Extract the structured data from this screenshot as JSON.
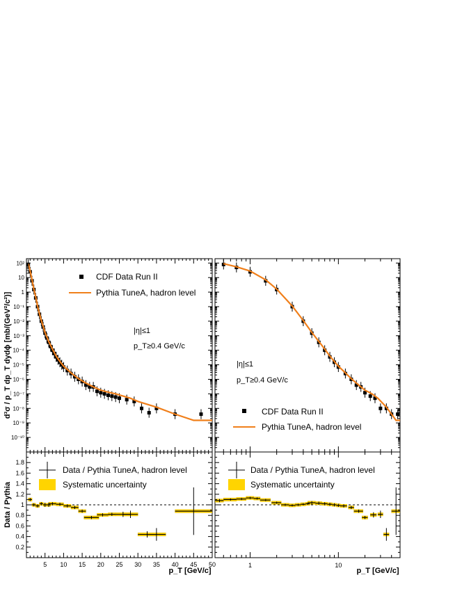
{
  "colors": {
    "data": "#000000",
    "mc": "#f07f1a",
    "band": "#ffd400",
    "band_edge": "#e6b800"
  },
  "labels": {
    "ylabel_top": "d³σ / p_T dp_T dydϕ [mb/(GeV²/c²)]",
    "ylabel_ratio": "Data / Pythia",
    "xlabel": "p_T  [GeV/c]",
    "cut_eta": "|η|≤1",
    "cut_pt": "p_T≥0.4 GeV/c",
    "legend_data": "CDF Data Run II",
    "legend_mc": "Pythia TuneA, hadron level",
    "legend_ratio": "Data / Pythia TuneA, hadron level",
    "legend_syst": "Systematic uncertainty"
  },
  "chart_data": [
    {
      "type": "scatter",
      "panel": "top-left",
      "x_scale": "linear",
      "y_scale": "log",
      "xlim": [
        0,
        50
      ],
      "ylim": [
        1e-11,
        200
      ],
      "x_ticks": [
        5,
        10,
        15,
        20,
        25,
        30,
        35,
        40,
        45,
        50
      ],
      "y_ticks": [
        "10²",
        "10",
        "1",
        "10⁻¹",
        "10⁻²",
        "10⁻³",
        "10⁻⁴",
        "10⁻⁵",
        "10⁻⁶",
        "10⁻⁷",
        "10⁻⁸",
        "10⁻⁹",
        "10⁻¹⁰"
      ],
      "legend_position": "top-left",
      "series": [
        {
          "name": "CDF Data Run II",
          "style": "markers",
          "x": [
            0.5,
            1,
            1.5,
            2,
            2.5,
            3,
            3.5,
            4,
            4.5,
            5,
            5.5,
            6,
            6.5,
            7,
            7.5,
            8,
            8.5,
            9,
            9.5,
            10,
            11,
            12,
            13,
            14,
            15,
            16,
            17,
            18,
            19,
            20,
            21,
            22,
            23,
            24,
            25,
            27,
            29,
            31,
            33,
            35,
            40,
            47
          ],
          "y": [
            80,
            25,
            6,
            1.5,
            0.4,
            0.1,
            0.03,
            0.01,
            0.004,
            0.0015,
            0.0007,
            0.00035,
            0.00018,
            0.0001,
            6e-05,
            3.5e-05,
            2.2e-05,
            1.5e-05,
            1e-05,
            7e-06,
            4e-06,
            2.5e-06,
            1.5e-06,
            1e-06,
            7e-07,
            4e-07,
            3e-07,
            3e-07,
            1.5e-07,
            1.2e-07,
            1e-07,
            8e-08,
            7e-08,
            6e-08,
            5e-08,
            4e-08,
            3e-08,
            1e-08,
            5e-09,
            1e-08,
            4e-09,
            4e-09
          ]
        },
        {
          "name": "Pythia TuneA, hadron level",
          "style": "line",
          "x": [
            0.5,
            1,
            1.5,
            2,
            2.5,
            3,
            3.5,
            4,
            4.5,
            5,
            6,
            7,
            8,
            9,
            10,
            12,
            14,
            16,
            18,
            20,
            22,
            24,
            26,
            28,
            30,
            35,
            40,
            45,
            50
          ],
          "y": [
            90,
            28,
            7,
            1.6,
            0.45,
            0.11,
            0.033,
            0.011,
            0.0045,
            0.0017,
            0.0004,
            0.00012,
            4e-05,
            1.7e-05,
            8e-06,
            2.8e-06,
            1.1e-06,
            5.5e-07,
            3e-07,
            1.8e-07,
            1.3e-07,
            1e-07,
            7e-08,
            5e-08,
            3e-08,
            1.2e-08,
            4e-09,
            1.5e-09,
            1.5e-09
          ]
        }
      ]
    },
    {
      "type": "scatter",
      "panel": "top-right",
      "x_scale": "log",
      "y_scale": "log",
      "xlim": [
        0.4,
        50
      ],
      "ylim": [
        1e-11,
        200
      ],
      "legend_position": "bottom-right",
      "series": [
        {
          "name": "CDF Data Run II",
          "style": "markers",
          "x": [
            0.5,
            0.7,
            1,
            1.5,
            2,
            3,
            4,
            5,
            6,
            7,
            8,
            9,
            10,
            12,
            14,
            16,
            18,
            20,
            23,
            26,
            30,
            35,
            40,
            47
          ],
          "y": [
            80,
            50,
            25,
            6,
            1.5,
            0.1,
            0.01,
            0.0015,
            0.00035,
            0.0001,
            3.5e-05,
            1.5e-05,
            7e-06,
            2.5e-06,
            1e-06,
            4e-07,
            3e-07,
            1.2e-07,
            7e-08,
            5e-08,
            1e-08,
            1e-08,
            4e-09,
            4e-09
          ]
        },
        {
          "name": "Pythia TuneA, hadron level",
          "style": "line",
          "x": [
            0.5,
            0.7,
            1,
            1.5,
            2,
            3,
            4,
            5,
            6,
            7,
            8,
            9,
            10,
            12,
            14,
            16,
            18,
            20,
            24,
            28,
            35,
            40,
            45,
            50
          ],
          "y": [
            90,
            55,
            28,
            7,
            1.6,
            0.11,
            0.011,
            0.0017,
            0.0004,
            0.00012,
            4e-05,
            1.7e-05,
            8e-06,
            2.8e-06,
            1.1e-06,
            5.5e-07,
            3e-07,
            1.8e-07,
            1e-07,
            5e-08,
            1.2e-08,
            4e-09,
            1.5e-09,
            1.5e-09
          ]
        }
      ]
    },
    {
      "type": "scatter",
      "panel": "bottom-left",
      "x_scale": "linear",
      "y_scale": "linear",
      "xlim": [
        0,
        50
      ],
      "ylim": [
        0,
        2.0
      ],
      "x_ticks": [
        5,
        10,
        15,
        20,
        25,
        30,
        35,
        40,
        45,
        50
      ],
      "y_ticks": [
        0.2,
        0.4,
        0.6,
        0.8,
        1,
        1.2,
        1.4,
        1.6,
        1.8
      ],
      "legend_position": "top-left",
      "series": [
        {
          "name": "Data / Pythia TuneA, hadron level",
          "x": [
            1,
            2,
            3,
            4,
            5,
            6,
            7,
            9,
            11,
            13,
            15,
            17.5,
            20.5,
            23,
            26,
            28,
            32.5,
            35,
            45
          ],
          "y": [
            1.1,
            1.0,
            0.98,
            1.02,
            1.0,
            1.0,
            1.02,
            1.01,
            0.98,
            0.95,
            0.88,
            0.76,
            0.81,
            0.82,
            0.82,
            0.82,
            0.44,
            0.44,
            0.88
          ],
          "xerr": [
            0.5,
            0.5,
            0.5,
            0.5,
            0.5,
            0.5,
            1,
            1,
            1,
            1,
            1,
            2,
            1.5,
            1,
            2,
            2,
            2.5,
            2.5,
            5
          ],
          "yerr": [
            0.03,
            0.03,
            0.03,
            0.03,
            0.04,
            0.04,
            0.03,
            0.03,
            0.03,
            0.03,
            0.03,
            0.03,
            0.03,
            0.03,
            0.05,
            0.07,
            0.06,
            0.12,
            0.45
          ]
        },
        {
          "name": "Systematic uncertainty",
          "style": "band",
          "rel_err": 0.03
        }
      ]
    },
    {
      "type": "scatter",
      "panel": "bottom-right",
      "x_scale": "log",
      "y_scale": "linear",
      "xlim": [
        0.4,
        50
      ],
      "ylim": [
        0,
        2.0
      ],
      "series": [
        {
          "name": "Data / Pythia TuneA, hadron level",
          "x": [
            0.45,
            0.6,
            0.8,
            1.0,
            1.2,
            1.5,
            2,
            2.5,
            3,
            3.5,
            4,
            4.5,
            5,
            6,
            7,
            8,
            9,
            10,
            11.5,
            14,
            17,
            20,
            25,
            30,
            35,
            45
          ],
          "y": [
            1.08,
            1.1,
            1.11,
            1.13,
            1.12,
            1.09,
            1.04,
            1.0,
            0.99,
            1.0,
            1.01,
            1.02,
            1.04,
            1.03,
            1.02,
            1.01,
            1.0,
            0.99,
            0.98,
            0.95,
            0.88,
            0.76,
            0.81,
            0.82,
            0.44,
            0.88
          ],
          "xerr": [
            0.05,
            0.1,
            0.1,
            0.1,
            0.1,
            0.2,
            0.25,
            0.25,
            0.25,
            0.25,
            0.25,
            0.25,
            0.5,
            0.5,
            0.5,
            0.5,
            0.5,
            0.5,
            1,
            1,
            2,
            1.5,
            2,
            2,
            2.5,
            5
          ],
          "yerr": [
            0.03,
            0.02,
            0.02,
            0.02,
            0.02,
            0.02,
            0.02,
            0.02,
            0.02,
            0.02,
            0.02,
            0.02,
            0.03,
            0.03,
            0.03,
            0.03,
            0.03,
            0.03,
            0.03,
            0.03,
            0.03,
            0.03,
            0.05,
            0.07,
            0.12,
            0.45
          ]
        },
        {
          "name": "Systematic uncertainty",
          "style": "band",
          "rel_err": 0.03
        }
      ]
    }
  ]
}
